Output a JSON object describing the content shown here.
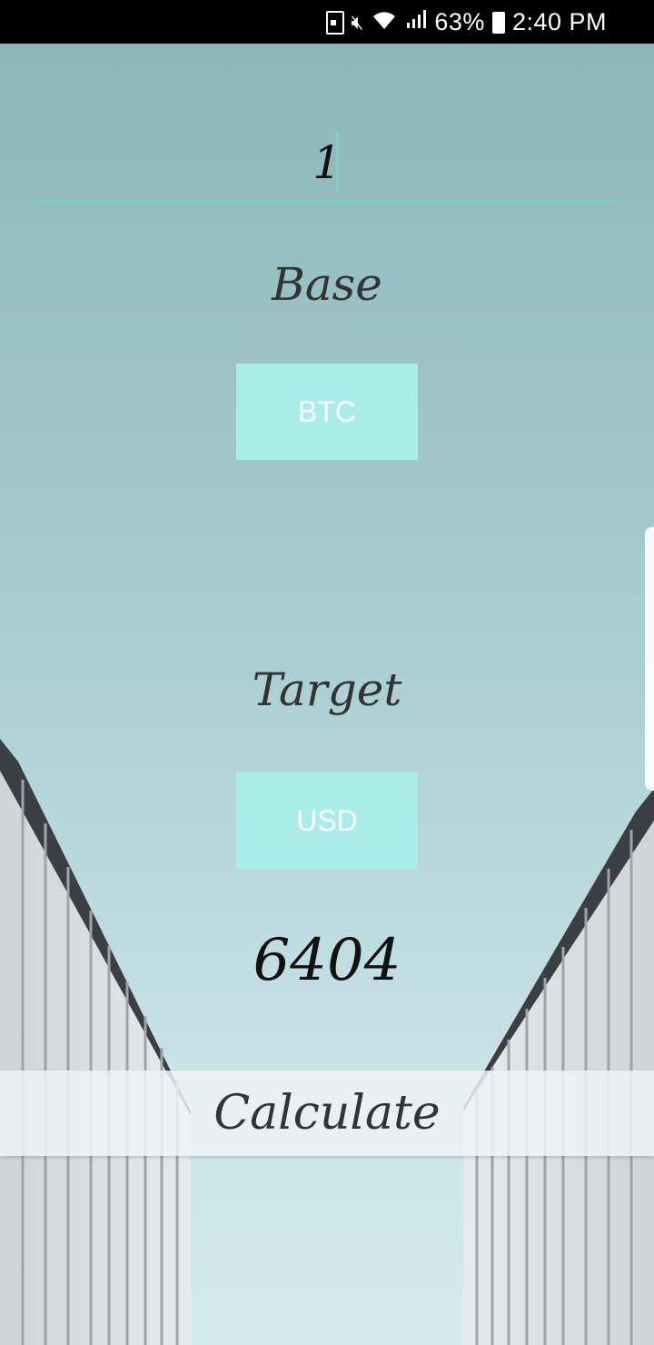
{
  "status_bar": {
    "battery_percent": "63%",
    "time": "2:40 PM"
  },
  "converter": {
    "amount_value": "1",
    "base_label": "Base",
    "base_currency": "BTC",
    "target_label": "Target",
    "target_currency": "USD",
    "result_value": "6404",
    "calculate_label": "Calculate"
  },
  "colors": {
    "accent": "#6fd1c7",
    "button_bg": "#aaecea",
    "status_bar_bg": "#000000"
  }
}
